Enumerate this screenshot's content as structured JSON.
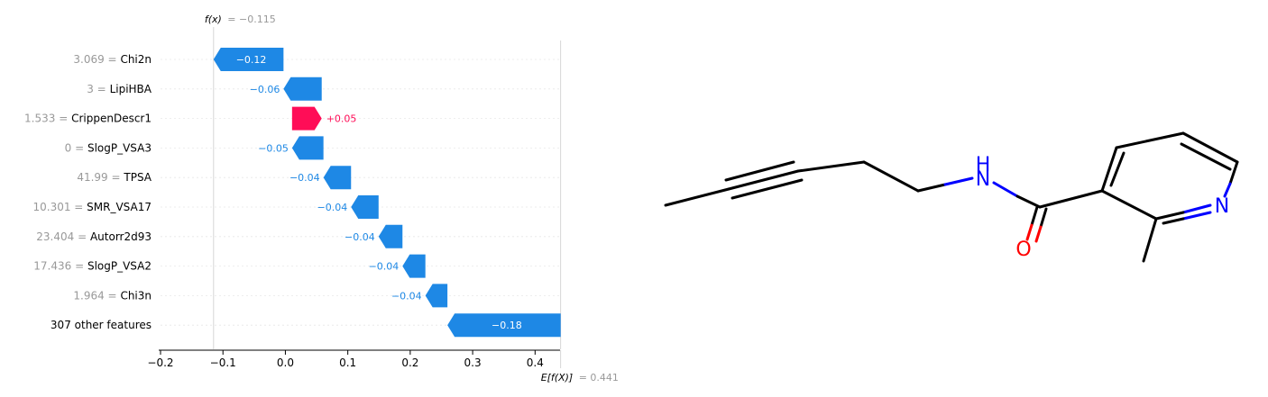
{
  "chart_data": {
    "type": "waterfall",
    "fx_label": "f(x)",
    "fx_value": "= −0.115",
    "ex_label": "E[f(X)]",
    "ex_value": "= 0.441",
    "base_value": 0.441,
    "final_value": -0.115,
    "xlim": [
      -0.2,
      0.44
    ],
    "ticks": [
      -0.2,
      -0.1,
      0.0,
      0.1,
      0.2,
      0.3,
      0.4
    ],
    "tick_labels": [
      "−0.2",
      "−0.1",
      "0.0",
      "0.1",
      "0.2",
      "0.3",
      "0.4"
    ],
    "positive_color": "#ff0d57",
    "negative_color": "#1e88e5",
    "features": [
      {
        "value_text": "3.069 =",
        "name": "Chi2n",
        "contribution": -0.12,
        "label": "−0.12",
        "start": -0.003,
        "end": -0.1151
      },
      {
        "value_text": "3 =",
        "name": "LipiHBA",
        "contribution": -0.06,
        "label": "−0.06",
        "start": 0.0582,
        "end": -0.003
      },
      {
        "value_text": "1.533 =",
        "name": "CrippenDescr1",
        "contribution": 0.05,
        "label": "+0.05",
        "start": 0.0107,
        "end": 0.0582
      },
      {
        "value_text": "0 =",
        "name": "SlogP_VSA3",
        "contribution": -0.05,
        "label": "−0.05",
        "start": 0.061,
        "end": 0.0107
      },
      {
        "value_text": "41.99 =",
        "name": "TPSA",
        "contribution": -0.04,
        "label": "−0.04",
        "start": 0.1052,
        "end": 0.061
      },
      {
        "value_text": "10.301 =",
        "name": "SMR_VSA17",
        "contribution": -0.04,
        "label": "−0.04",
        "start": 0.1493,
        "end": 0.1052
      },
      {
        "value_text": "23.404 =",
        "name": "Autorr2d93",
        "contribution": -0.04,
        "label": "−0.04",
        "start": 0.1876,
        "end": 0.1493
      },
      {
        "value_text": "17.436 =",
        "name": "SlogP_VSA2",
        "contribution": -0.04,
        "label": "−0.04",
        "start": 0.2243,
        "end": 0.1876
      },
      {
        "value_text": "1.964 =",
        "name": "Chi3n",
        "contribution": -0.04,
        "label": "−0.04",
        "start": 0.2596,
        "end": 0.2243
      },
      {
        "value_text": "",
        "name": "307 other features",
        "contribution": -0.18,
        "label": "−0.18",
        "start": 0.441,
        "end": 0.2596
      }
    ]
  },
  "molecule": {
    "atom_labels": {
      "nitrogen_amide": "H",
      "nitrogen_amide_n": "N",
      "oxygen": "O",
      "nitrogen_ring": "N"
    },
    "colors": {
      "bond": "#000000",
      "nitrogen": "#0000ff",
      "oxygen": "#ff0000"
    }
  }
}
